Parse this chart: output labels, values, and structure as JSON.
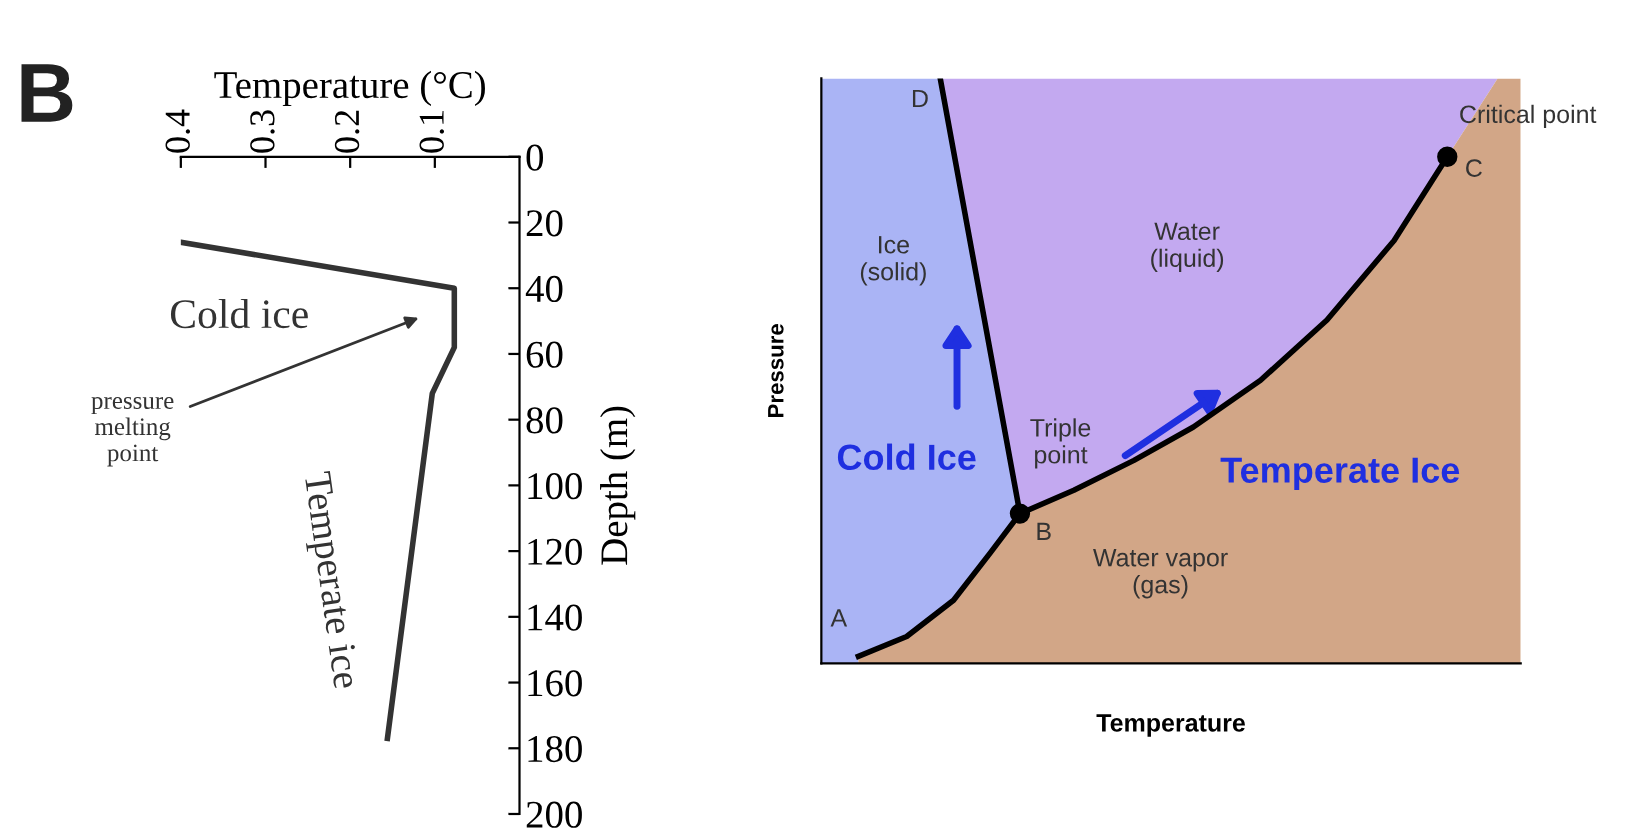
{
  "chart_data": [
    {
      "type": "line",
      "xlabel": "Temperature (°C)",
      "ylabel": "Depth (m)",
      "xlim": [
        0.4,
        0.0
      ],
      "xticks": [
        0.4,
        0.3,
        0.2,
        0.1
      ],
      "ylim": [
        200,
        0
      ],
      "yticks": [
        0,
        20,
        40,
        60,
        80,
        100,
        120,
        140,
        160,
        180,
        200
      ],
      "series": [
        {
          "color": "#333333",
          "x": [
            0.4,
            0.077,
            0.077,
            0.103,
            0.156
          ],
          "values": [
            26,
            40,
            58,
            72,
            177
          ]
        }
      ],
      "annotations": [
        "B",
        "Cold ice",
        "pressure\nmelting\npoint",
        "Temperate ice"
      ]
    },
    {
      "type": "other",
      "xlabel": "Temperature",
      "ylabel": "Pressure",
      "annotations": [
        "D",
        "A",
        "B",
        "C",
        "Critical point",
        "Ice\n(solid)",
        "Water\n(liquid)",
        "Triple\npoint",
        "Water vapor\n(gas)",
        "Cold Ice",
        "Temperate Ice"
      ]
    }
  ]
}
